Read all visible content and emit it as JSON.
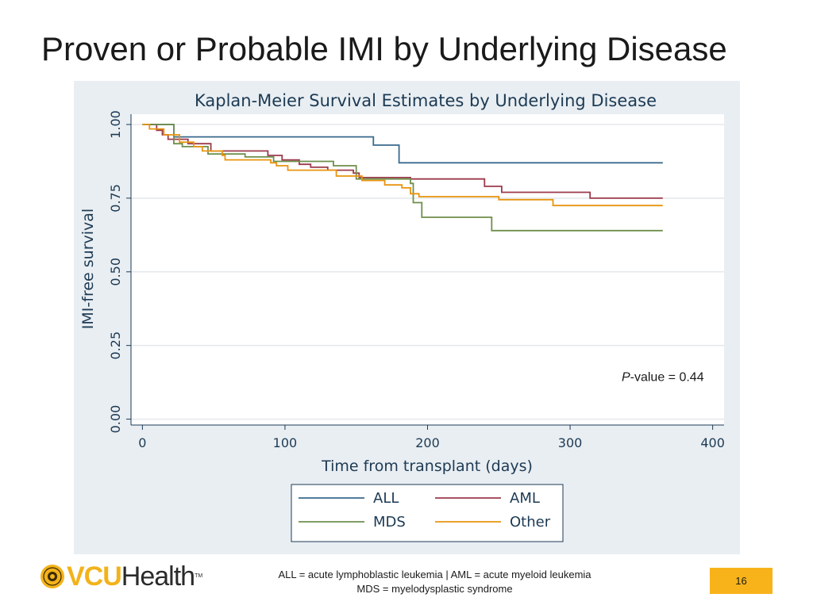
{
  "slide": {
    "title": "Proven or Probable IMI by Underlying Disease",
    "page_number": "16"
  },
  "footnote": {
    "line1": "ALL = acute lymphoblastic leukemia | AML = acute myeloid leukemia",
    "line2": "MDS = myelodysplastic syndrome"
  },
  "logo": {
    "brand": "VCU",
    "suffix": "Health",
    "tm": "TM"
  },
  "colors": {
    "accent": "#f8b31a",
    "panel_bg": "#e9eef2",
    "plot_bg": "#ffffff"
  },
  "chart_data": {
    "type": "line",
    "step": true,
    "title": "Kaplan-Meier Survival Estimates by Underlying Disease",
    "xlabel": "Time from transplant (days)",
    "ylabel": "IMI-free survival",
    "xlim": [
      -8,
      408
    ],
    "ylim": [
      -0.02,
      1.035
    ],
    "xticks": [
      0,
      100,
      200,
      300,
      400
    ],
    "xtick_labels": [
      "0",
      "100",
      "200",
      "300",
      "400"
    ],
    "yticks": [
      0,
      0.25,
      0.5,
      0.75,
      1
    ],
    "ytick_labels": [
      "0.00",
      "0.25",
      "0.50",
      "0.75",
      "1.00"
    ],
    "grid": true,
    "annotation": {
      "italic": "P",
      "text": "-value = 0.44",
      "x": 365,
      "y": 0.13
    },
    "legend_position": "bottom",
    "series": [
      {
        "name": "ALL",
        "color": "#3a6a8d",
        "x": [
          0,
          22,
          162,
          180,
          365
        ],
        "y": [
          1.0,
          0.958,
          0.93,
          0.87,
          0.87
        ]
      },
      {
        "name": "AML",
        "color": "#9c3a4c",
        "x": [
          0,
          10,
          14,
          18,
          32,
          48,
          88,
          98,
          110,
          118,
          130,
          148,
          152,
          188,
          240,
          252,
          314,
          365
        ],
        "y": [
          1.0,
          0.98,
          0.965,
          0.95,
          0.935,
          0.91,
          0.895,
          0.88,
          0.865,
          0.855,
          0.845,
          0.835,
          0.82,
          0.815,
          0.79,
          0.77,
          0.75,
          0.75
        ]
      },
      {
        "name": "MDS",
        "color": "#6e8f4b",
        "x": [
          0,
          22,
          28,
          46,
          72,
          92,
          134,
          150,
          188,
          190,
          196,
          210,
          245,
          365
        ],
        "y": [
          1.0,
          0.935,
          0.925,
          0.9,
          0.89,
          0.875,
          0.86,
          0.815,
          0.8,
          0.735,
          0.685,
          0.685,
          0.64,
          0.64
        ]
      },
      {
        "name": "Other",
        "color": "#e8940f",
        "x": [
          0,
          5,
          15,
          26,
          36,
          42,
          56,
          58,
          90,
          94,
          102,
          136,
          154,
          170,
          182,
          188,
          194,
          200,
          212,
          250,
          288,
          365
        ],
        "y": [
          1.0,
          0.985,
          0.965,
          0.94,
          0.925,
          0.91,
          0.895,
          0.88,
          0.87,
          0.86,
          0.845,
          0.825,
          0.81,
          0.795,
          0.785,
          0.765,
          0.755,
          0.755,
          0.755,
          0.745,
          0.725,
          0.725
        ]
      }
    ]
  }
}
